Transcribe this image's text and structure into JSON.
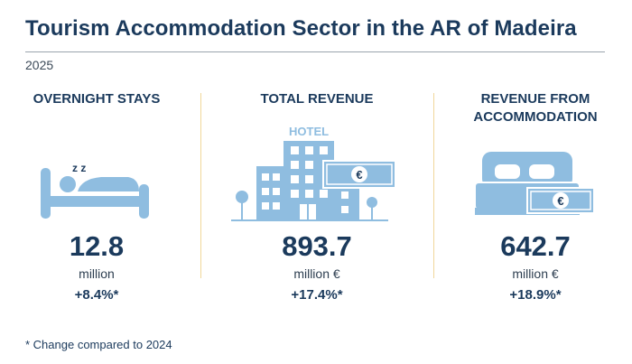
{
  "title": "Tourism Accommodation Sector in the AR of Madeira",
  "year": "2025",
  "colors": {
    "dark_blue": "#1b3a5c",
    "light_blue": "#8fbde0",
    "separator": "#f0d79a"
  },
  "indicators": [
    {
      "heading": "OVERNIGHT STAYS",
      "value": "12.8",
      "unit": "million",
      "change": "+8.4%*",
      "icon": "sleeping-person-icon"
    },
    {
      "heading": "TOTAL REVENUE",
      "value": "893.7",
      "unit": "million €",
      "change": "+17.4%*",
      "icon": "hotel-icon",
      "icon_label": "HOTEL"
    },
    {
      "heading": "REVENUE FROM ACCOMMODATION",
      "heading_line1": "REVENUE FROM",
      "heading_line2": "ACCOMMODATION",
      "value": "642.7",
      "unit": "million €",
      "change": "+18.9%*",
      "icon": "bed-money-icon"
    }
  ],
  "icon_text": {
    "sleep": "z z",
    "euro": "€"
  },
  "footnote": "* Change compared to 2024"
}
